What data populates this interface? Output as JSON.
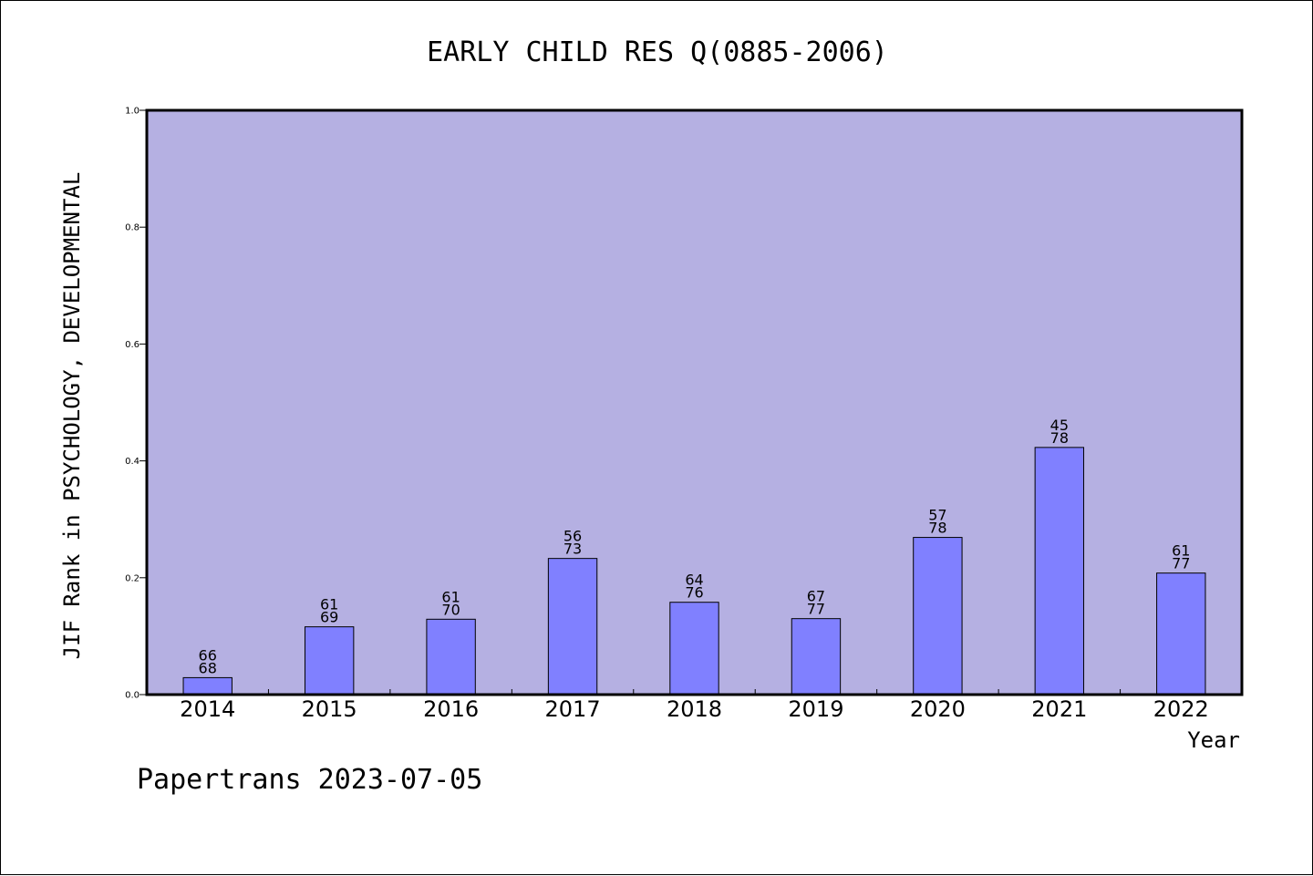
{
  "colors": {
    "plot_background": "#b5b0e2",
    "bar_fill": "#8080ff",
    "bar_stroke": "#000000"
  },
  "chart_data": {
    "type": "bar",
    "title": "EARLY CHILD RES Q(0885-2006)",
    "xlabel": "Year",
    "ylabel": "JIF Rank in PSYCHOLOGY, DEVELOPMENTAL",
    "ylim": [
      0,
      1.0
    ],
    "yticks": [
      "0.0",
      "0.2",
      "0.4",
      "0.6",
      "0.8",
      "1.0"
    ],
    "grid": false,
    "categories": [
      "2014",
      "2015",
      "2016",
      "2017",
      "2018",
      "2019",
      "2020",
      "2021",
      "2022"
    ],
    "values": [
      0.029,
      0.116,
      0.129,
      0.233,
      0.158,
      0.13,
      0.269,
      0.423,
      0.208
    ],
    "rank_labels": [
      [
        "66",
        "68"
      ],
      [
        "61",
        "69"
      ],
      [
        "61",
        "70"
      ],
      [
        "56",
        "73"
      ],
      [
        "64",
        "76"
      ],
      [
        "67",
        "77"
      ],
      [
        "57",
        "78"
      ],
      [
        "45",
        "78"
      ],
      [
        "61",
        "77"
      ]
    ]
  },
  "footer": "Papertrans 2023-07-05"
}
